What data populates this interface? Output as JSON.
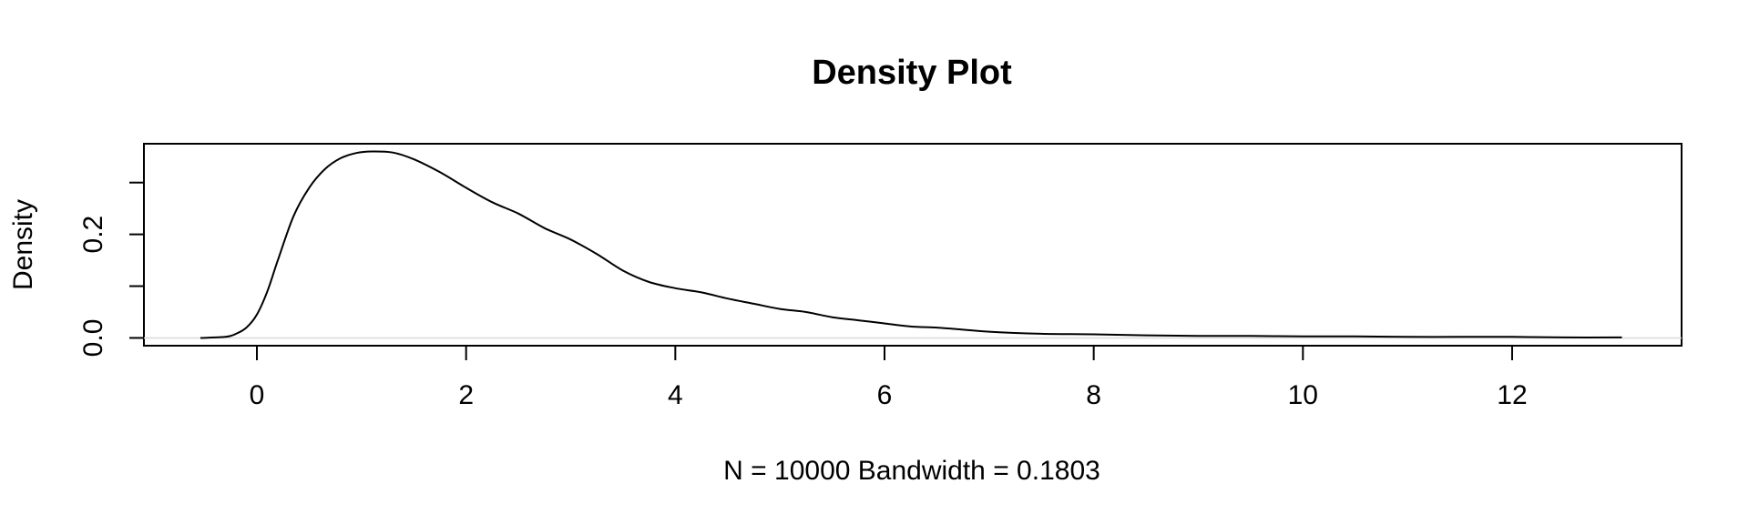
{
  "chart_data": {
    "type": "line",
    "title": "Density Plot",
    "xlabel": "N = 10000   Bandwidth = 0.1803",
    "ylabel": "Density",
    "xlim": [
      -1.08,
      13.62
    ],
    "ylim": [
      -0.015,
      0.375
    ],
    "x_ticks": [
      0,
      2,
      4,
      6,
      8,
      10,
      12
    ],
    "x_tick_labels": [
      "0",
      "2",
      "4",
      "6",
      "8",
      "10",
      "12"
    ],
    "y_ticks": [
      0.0,
      0.1,
      0.2,
      0.3
    ],
    "y_tick_labels": [
      "0.0",
      "",
      "0.2",
      ""
    ],
    "grid": false,
    "baseline": 0,
    "series": [
      {
        "x": [
          -0.54,
          -0.3,
          -0.2,
          -0.1,
          0,
          0.1,
          0.2,
          0.35,
          0.5,
          0.65,
          0.8,
          0.95,
          1.1,
          1.3,
          1.5,
          1.75,
          2.0,
          2.25,
          2.5,
          2.75,
          3.0,
          3.25,
          3.5,
          3.75,
          4.0,
          4.25,
          4.5,
          4.75,
          5.0,
          5.25,
          5.5,
          5.75,
          6.0,
          6.25,
          6.5,
          6.75,
          7.0,
          7.5,
          8.0,
          8.5,
          9.0,
          9.5,
          10.0,
          10.5,
          11.0,
          11.5,
          12.0,
          12.5,
          13.05
        ],
        "y": [
          0.0,
          0.002,
          0.008,
          0.02,
          0.045,
          0.09,
          0.15,
          0.235,
          0.29,
          0.326,
          0.347,
          0.357,
          0.36,
          0.358,
          0.345,
          0.32,
          0.29,
          0.262,
          0.24,
          0.212,
          0.19,
          0.162,
          0.13,
          0.108,
          0.096,
          0.088,
          0.076,
          0.066,
          0.056,
          0.05,
          0.04,
          0.034,
          0.028,
          0.022,
          0.02,
          0.016,
          0.012,
          0.008,
          0.007,
          0.005,
          0.004,
          0.004,
          0.003,
          0.003,
          0.002,
          0.002,
          0.002,
          0.001,
          0.001
        ]
      }
    ]
  }
}
